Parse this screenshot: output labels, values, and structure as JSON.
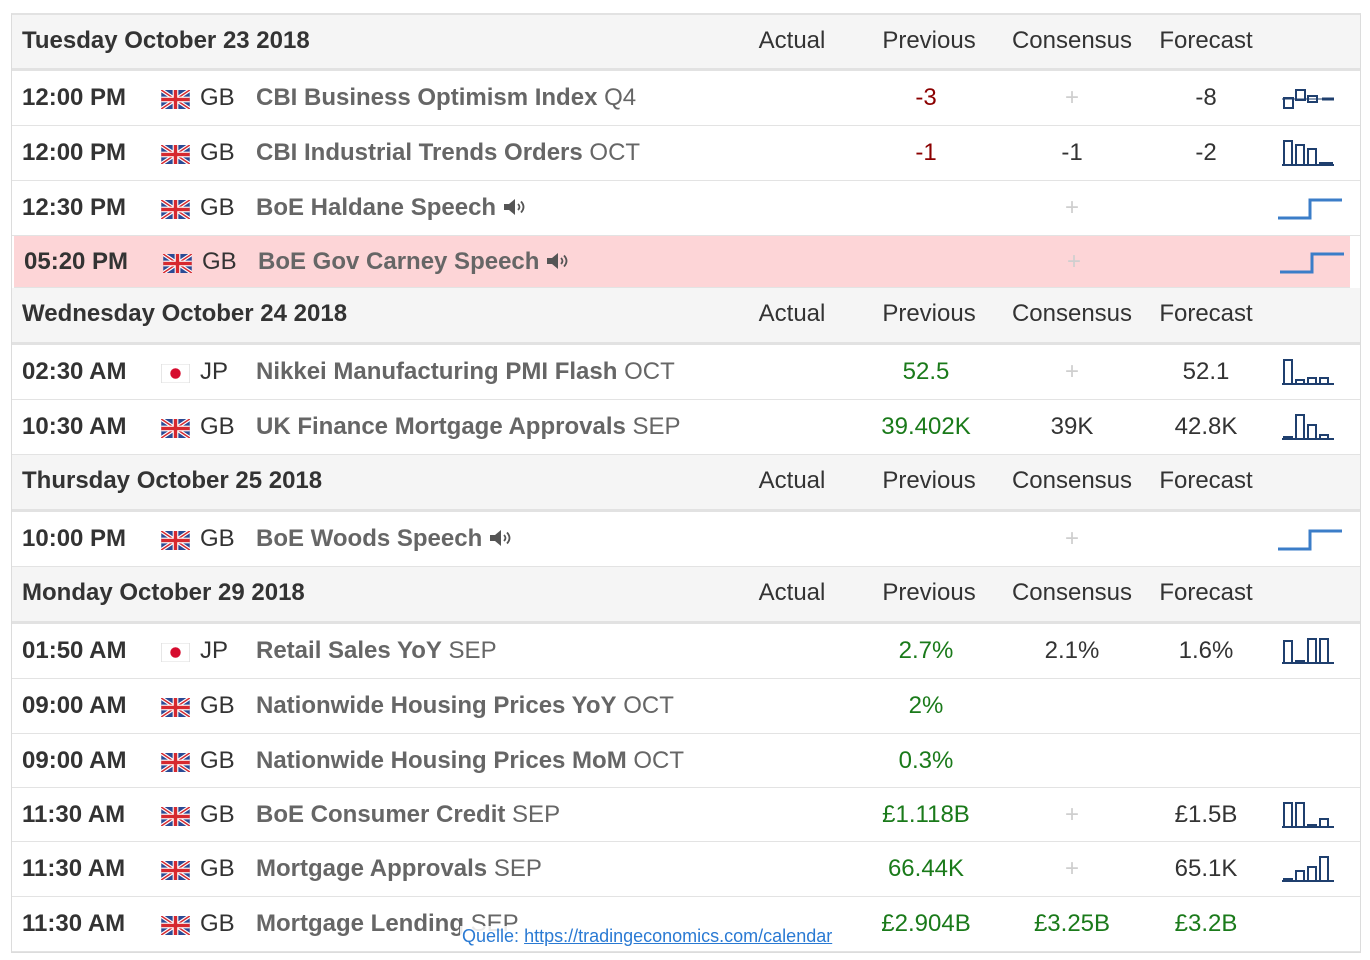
{
  "columns": {
    "actual": "Actual",
    "previous": "Previous",
    "consensus": "Consensus",
    "forecast": "Forecast"
  },
  "days": [
    {
      "date": "Tuesday October 23 2018",
      "events": [
        {
          "time": "12:00 PM",
          "flag": "GB",
          "country": "GB",
          "name": "CBI Business Optimism Index",
          "period": "Q4",
          "actual": "",
          "previous": "-3",
          "previous_color": "negative",
          "consensus": "+",
          "forecast": "-8",
          "spark": "bars-mixed",
          "speech": false,
          "highlight": false
        },
        {
          "time": "12:00 PM",
          "flag": "GB",
          "country": "GB",
          "name": "CBI Industrial Trends Orders",
          "period": "OCT",
          "actual": "",
          "previous": "-1",
          "previous_color": "negative",
          "consensus": "-1",
          "forecast": "-2",
          "spark": "bars-desc",
          "speech": false,
          "highlight": false
        },
        {
          "time": "12:30 PM",
          "flag": "GB",
          "country": "GB",
          "name": "BoE Haldane Speech",
          "period": "",
          "actual": "",
          "previous": "",
          "previous_color": "",
          "consensus": "+",
          "forecast": "",
          "spark": "step",
          "speech": true,
          "highlight": false
        },
        {
          "time": "05:20 PM",
          "flag": "GB",
          "country": "GB",
          "name": "BoE Gov Carney Speech",
          "period": "",
          "actual": "",
          "previous": "",
          "previous_color": "",
          "consensus": "+",
          "forecast": "",
          "spark": "step",
          "speech": true,
          "highlight": true
        }
      ]
    },
    {
      "date": "Wednesday October 24 2018",
      "events": [
        {
          "time": "02:30 AM",
          "flag": "JP",
          "country": "JP",
          "name": "Nikkei Manufacturing PMI Flash",
          "period": "OCT",
          "actual": "",
          "previous": "52.5",
          "previous_color": "positive",
          "consensus": "+",
          "forecast": "52.1",
          "spark": "bars-tall-low",
          "speech": false,
          "highlight": false
        },
        {
          "time": "10:30 AM",
          "flag": "GB",
          "country": "GB",
          "name": "UK Finance Mortgage Approvals",
          "period": "SEP",
          "actual": "",
          "previous": "39.402K",
          "previous_color": "positive",
          "consensus": "39K",
          "forecast": "42.8K",
          "spark": "bars-mid",
          "speech": false,
          "highlight": false
        }
      ]
    },
    {
      "date": "Thursday October 25 2018",
      "events": [
        {
          "time": "10:00 PM",
          "flag": "GB",
          "country": "GB",
          "name": "BoE Woods Speech",
          "period": "",
          "actual": "",
          "previous": "",
          "previous_color": "",
          "consensus": "+",
          "forecast": "",
          "spark": "step",
          "speech": true,
          "highlight": false
        }
      ]
    },
    {
      "date": "Monday October 29 2018",
      "events": [
        {
          "time": "01:50 AM",
          "flag": "JP",
          "country": "JP",
          "name": "Retail Sales YoY",
          "period": "SEP",
          "actual": "",
          "previous": "2.7%",
          "previous_color": "positive",
          "consensus": "2.1%",
          "forecast": "1.6%",
          "spark": "bars-tall",
          "speech": false,
          "highlight": false
        },
        {
          "time": "09:00 AM",
          "flag": "GB",
          "country": "GB",
          "name": "Nationwide Housing Prices YoY",
          "period": "OCT",
          "actual": "",
          "previous": "2%",
          "previous_color": "positive",
          "consensus": "",
          "forecast": "",
          "spark": "",
          "speech": false,
          "highlight": false
        },
        {
          "time": "09:00 AM",
          "flag": "GB",
          "country": "GB",
          "name": "Nationwide Housing Prices MoM",
          "period": "OCT",
          "actual": "",
          "previous": "0.3%",
          "previous_color": "positive",
          "consensus": "",
          "forecast": "",
          "spark": "",
          "speech": false,
          "highlight": false
        },
        {
          "time": "11:30 AM",
          "flag": "GB",
          "country": "GB",
          "name": "BoE Consumer Credit",
          "period": "SEP",
          "actual": "",
          "previous": "£1.118B",
          "previous_color": "positive",
          "consensus": "+",
          "forecast": "£1.5B",
          "spark": "bars-desc2",
          "speech": false,
          "highlight": false
        },
        {
          "time": "11:30 AM",
          "flag": "GB",
          "country": "GB",
          "name": "Mortgage Approvals",
          "period": "SEP",
          "actual": "",
          "previous": "66.44K",
          "previous_color": "positive",
          "consensus": "+",
          "forecast": "65.1K",
          "spark": "bars-asc",
          "speech": false,
          "highlight": false
        },
        {
          "time": "11:30 AM",
          "flag": "GB",
          "country": "GB",
          "name": "Mortgage Lending",
          "period": "SEP",
          "actual": "",
          "previous": "£2.904B",
          "previous_color": "positive",
          "consensus": "£3.25B",
          "consensus_color": "positive",
          "forecast": "£3.2B",
          "forecast_color": "positive",
          "spark": "",
          "speech": false,
          "highlight": false
        }
      ]
    }
  ],
  "source": {
    "label": "Quelle:",
    "url": "https://tradingeconomics.com/calendar"
  },
  "colors": {
    "negative": "#8b0000",
    "positive": "#1a7a1a",
    "highlight": "#fdd5d7",
    "header_bg": "#f5f5f5",
    "event_text": "#666666",
    "spark_line": "#3b7dc8"
  }
}
